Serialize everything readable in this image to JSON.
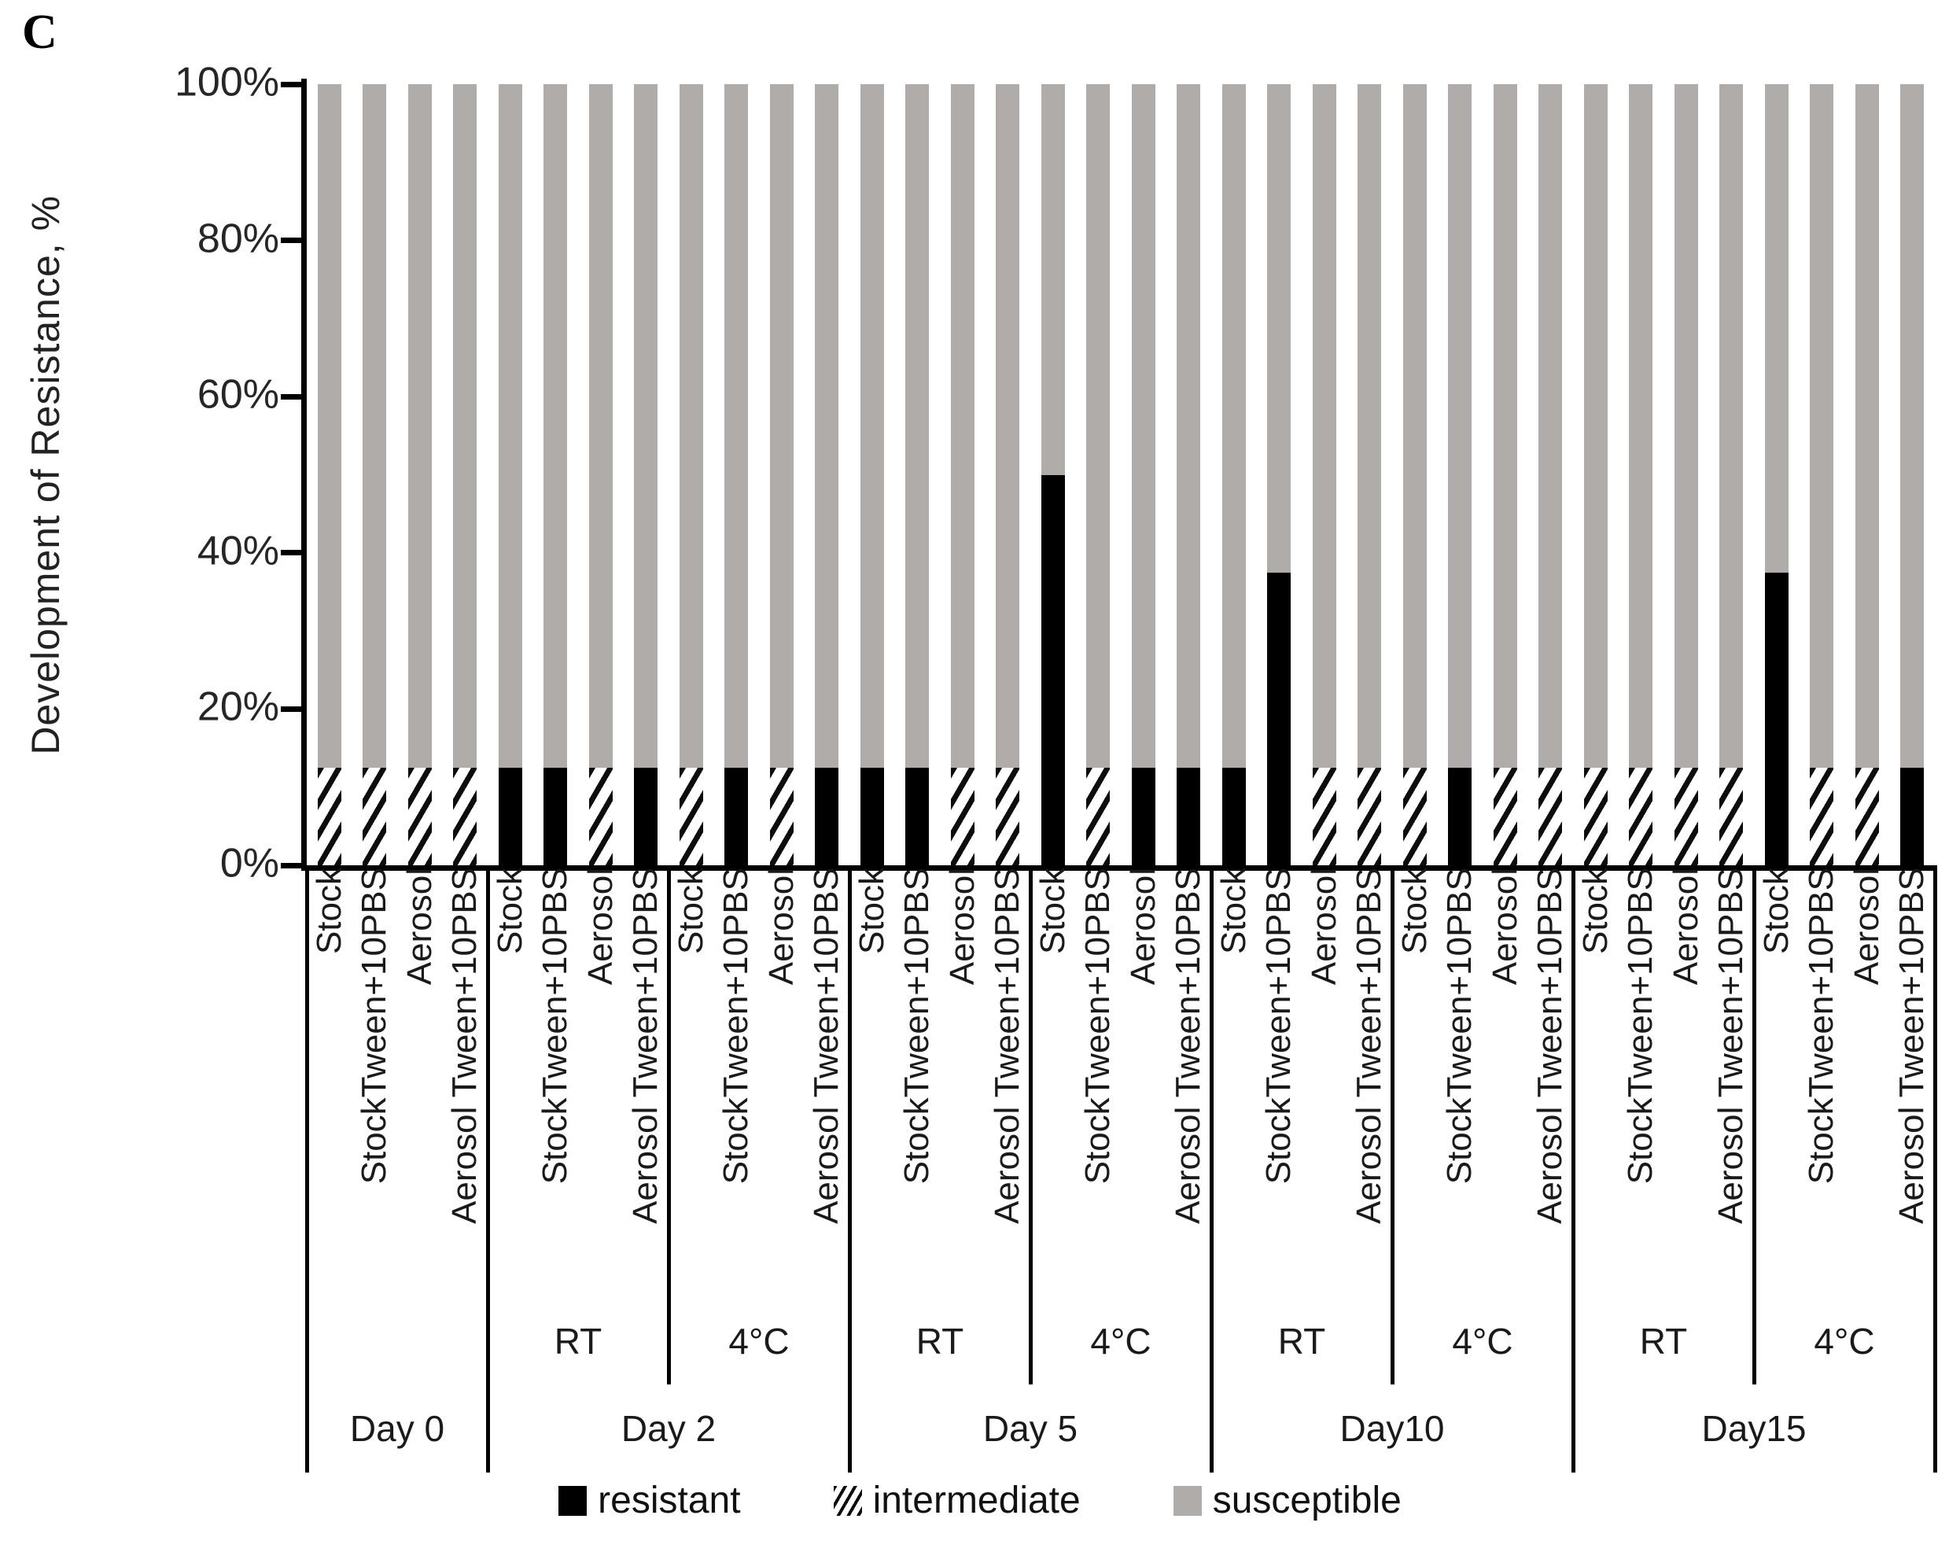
{
  "panel_label": "C",
  "y_axis": {
    "title": "Development of Resistance, %"
  },
  "legend": {
    "items": [
      {
        "label": "resistant",
        "swatch": "black-square"
      },
      {
        "label": "intermediate",
        "swatch": "diagonal-hatch-square"
      },
      {
        "label": "susceptible",
        "swatch": "gray-square"
      }
    ]
  },
  "colors": {
    "resistant": "#000000",
    "intermediate_line": "#0d0d0d",
    "susceptible": "#b0acaa",
    "axis": "#000000"
  },
  "chart_data": {
    "type": "bar",
    "stacked": true,
    "value_unit": "%",
    "ylim": [
      0,
      100
    ],
    "yticks": [
      0,
      20,
      40,
      60,
      80,
      100
    ],
    "ylabel": "Development of Resistance, %",
    "series_keys": [
      "resistant",
      "intermediate",
      "susceptible"
    ],
    "legend_position": "bottom",
    "groups": [
      {
        "day": "Day 0",
        "temps": [
          {
            "label": "",
            "bars": [
              {
                "sample": "Stock",
                "resistant": 0,
                "intermediate": 12.5,
                "susceptible": 87.5
              },
              {
                "sample": "StockTween+10PBS",
                "resistant": 0,
                "intermediate": 12.5,
                "susceptible": 87.5
              },
              {
                "sample": "Aerosol",
                "resistant": 0,
                "intermediate": 12.5,
                "susceptible": 87.5
              },
              {
                "sample": "Aerosol Tween+10PBS",
                "resistant": 0,
                "intermediate": 12.5,
                "susceptible": 87.5
              }
            ]
          }
        ]
      },
      {
        "day": "Day 2",
        "temps": [
          {
            "label": "RT",
            "bars": [
              {
                "sample": "Stock",
                "resistant": 12.5,
                "intermediate": 0,
                "susceptible": 87.5
              },
              {
                "sample": "StockTween+10PBS",
                "resistant": 12.5,
                "intermediate": 0,
                "susceptible": 87.5
              },
              {
                "sample": "Aerosol",
                "resistant": 0,
                "intermediate": 12.5,
                "susceptible": 87.5
              },
              {
                "sample": "Aerosol Tween+10PBS",
                "resistant": 12.5,
                "intermediate": 0,
                "susceptible": 87.5
              }
            ]
          },
          {
            "label": "4°C",
            "bars": [
              {
                "sample": "Stock",
                "resistant": 0,
                "intermediate": 12.5,
                "susceptible": 87.5
              },
              {
                "sample": "StockTween+10PBS",
                "resistant": 12.5,
                "intermediate": 0,
                "susceptible": 87.5
              },
              {
                "sample": "Aerosol",
                "resistant": 0,
                "intermediate": 12.5,
                "susceptible": 87.5
              },
              {
                "sample": "Aerosol Tween+10PBS",
                "resistant": 12.5,
                "intermediate": 0,
                "susceptible": 87.5
              }
            ]
          }
        ]
      },
      {
        "day": "Day 5",
        "temps": [
          {
            "label": "RT",
            "bars": [
              {
                "sample": "Stock",
                "resistant": 12.5,
                "intermediate": 0,
                "susceptible": 87.5
              },
              {
                "sample": "StockTween+10PBS",
                "resistant": 12.5,
                "intermediate": 0,
                "susceptible": 87.5
              },
              {
                "sample": "Aerosol",
                "resistant": 0,
                "intermediate": 12.5,
                "susceptible": 87.5
              },
              {
                "sample": "Aerosol Tween+10PBS",
                "resistant": 0,
                "intermediate": 12.5,
                "susceptible": 87.5
              }
            ]
          },
          {
            "label": "4°C",
            "bars": [
              {
                "sample": "Stock",
                "resistant": 50,
                "intermediate": 0,
                "susceptible": 50
              },
              {
                "sample": "StockTween+10PBS",
                "resistant": 0,
                "intermediate": 12.5,
                "susceptible": 87.5
              },
              {
                "sample": "Aerosol",
                "resistant": 12.5,
                "intermediate": 0,
                "susceptible": 87.5
              },
              {
                "sample": "Aerosol Tween+10PBS",
                "resistant": 12.5,
                "intermediate": 0,
                "susceptible": 87.5
              }
            ]
          }
        ]
      },
      {
        "day": "Day10",
        "temps": [
          {
            "label": "RT",
            "bars": [
              {
                "sample": "Stock",
                "resistant": 12.5,
                "intermediate": 0,
                "susceptible": 87.5
              },
              {
                "sample": "StockTween+10PBS",
                "resistant": 37.5,
                "intermediate": 0,
                "susceptible": 62.5
              },
              {
                "sample": "Aerosol",
                "resistant": 0,
                "intermediate": 12.5,
                "susceptible": 87.5
              },
              {
                "sample": "Aerosol Tween+10PBS",
                "resistant": 0,
                "intermediate": 12.5,
                "susceptible": 87.5
              }
            ]
          },
          {
            "label": "4°C",
            "bars": [
              {
                "sample": "Stock",
                "resistant": 0,
                "intermediate": 12.5,
                "susceptible": 87.5
              },
              {
                "sample": "StockTween+10PBS",
                "resistant": 12.5,
                "intermediate": 0,
                "susceptible": 87.5
              },
              {
                "sample": "Aerosol",
                "resistant": 0,
                "intermediate": 12.5,
                "susceptible": 87.5
              },
              {
                "sample": "Aerosol Tween+10PBS",
                "resistant": 0,
                "intermediate": 12.5,
                "susceptible": 87.5
              }
            ]
          }
        ]
      },
      {
        "day": "Day15",
        "temps": [
          {
            "label": "RT",
            "bars": [
              {
                "sample": "Stock",
                "resistant": 0,
                "intermediate": 12.5,
                "susceptible": 87.5
              },
              {
                "sample": "StockTween+10PBS",
                "resistant": 0,
                "intermediate": 12.5,
                "susceptible": 87.5
              },
              {
                "sample": "Aerosol",
                "resistant": 0,
                "intermediate": 12.5,
                "susceptible": 87.5
              },
              {
                "sample": "Aerosol Tween+10PBS",
                "resistant": 0,
                "intermediate": 12.5,
                "susceptible": 87.5
              }
            ]
          },
          {
            "label": "4°C",
            "bars": [
              {
                "sample": "Stock",
                "resistant": 37.5,
                "intermediate": 0,
                "susceptible": 62.5
              },
              {
                "sample": "StockTween+10PBS",
                "resistant": 0,
                "intermediate": 12.5,
                "susceptible": 87.5
              },
              {
                "sample": "Aerosol",
                "resistant": 0,
                "intermediate": 12.5,
                "susceptible": 87.5
              },
              {
                "sample": "Aerosol Tween+10PBS",
                "resistant": 12.5,
                "intermediate": 0,
                "susceptible": 87.5
              }
            ]
          }
        ]
      }
    ]
  }
}
